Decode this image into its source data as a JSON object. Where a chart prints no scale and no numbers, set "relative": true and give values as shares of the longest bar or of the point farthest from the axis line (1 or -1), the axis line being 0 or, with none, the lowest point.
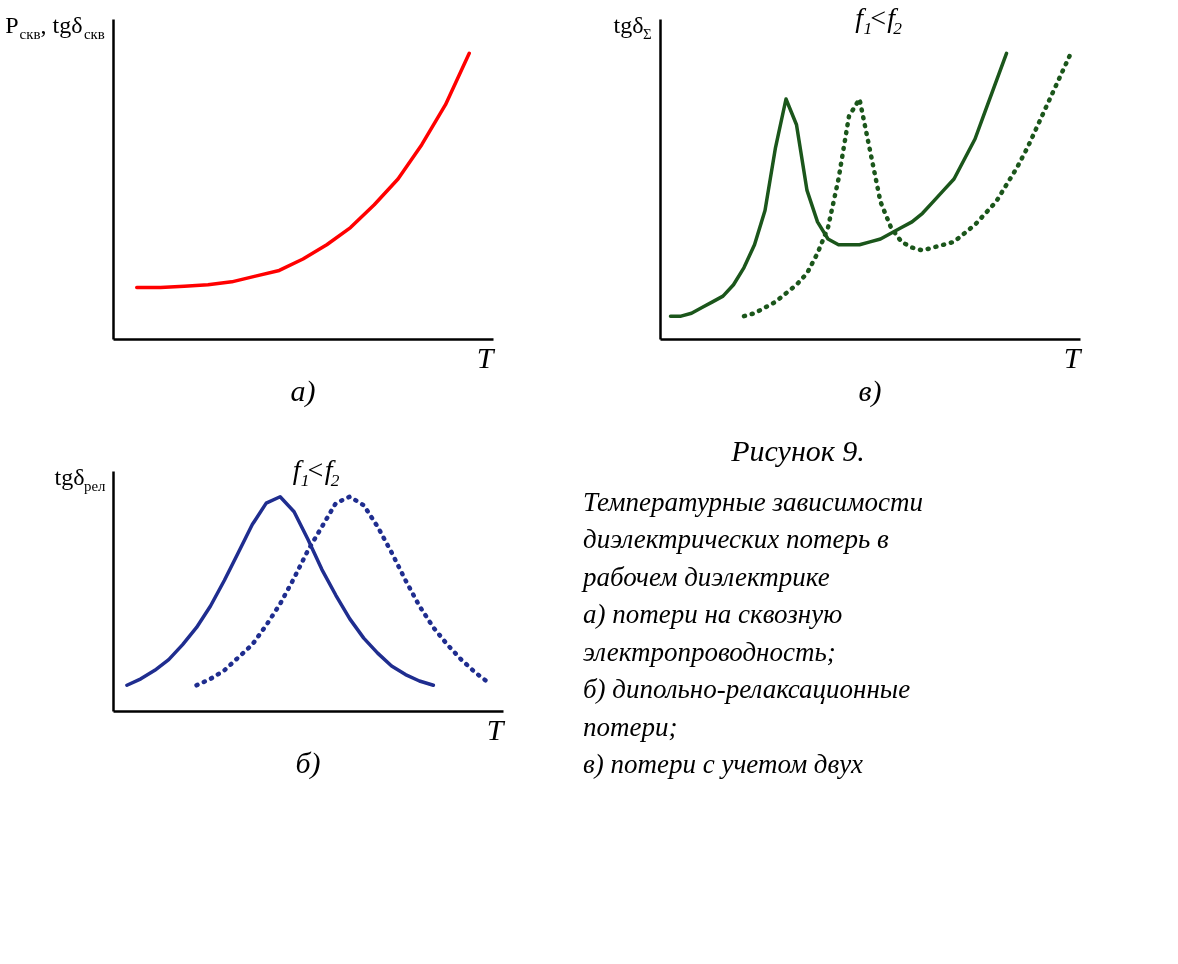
{
  "chart_data": [
    {
      "type": "line",
      "relative": true,
      "title": "а)",
      "xlabel": "T",
      "ylabel": "P$_{скв}$, tgδ$_{скв}$",
      "tick_labels": false,
      "grid": false,
      "marker": "none",
      "categories": [
        null,
        null,
        null,
        null,
        null,
        null,
        null,
        null,
        null,
        null,
        null,
        null,
        null,
        null,
        null
      ],
      "series": [
        {
          "color": "#ff0000",
          "line_style": "solid",
          "values": [
            0.18,
            0.18,
            0.185,
            0.19,
            0.2,
            0.22,
            0.24,
            0.28,
            0.33,
            0.39,
            0.47,
            0.56,
            0.68,
            0.82,
            1.0
          ]
        }
      ]
    },
    {
      "type": "line",
      "relative": true,
      "title": "в)",
      "xlabel": "T",
      "ylabel": "tgδ$_{Σ}$",
      "annotations": [
        "f$_{1}$<f$_{2}$"
      ],
      "tick_labels": false,
      "grid": false,
      "marker": "none",
      "categories": [
        null,
        null,
        null,
        null,
        null,
        null,
        null,
        null,
        null,
        null,
        null,
        null,
        null,
        null,
        null,
        null,
        null,
        null,
        null,
        null,
        null,
        null,
        null,
        null,
        null,
        null,
        null,
        null,
        null,
        null,
        null,
        null,
        null,
        null,
        null,
        null,
        null,
        null,
        null
      ],
      "series": [
        {
          "color": "#1b561b",
          "line_style": "solid",
          "values": [
            0.08,
            0.08,
            0.09,
            0.11,
            0.13,
            0.15,
            0.19,
            0.25,
            0.33,
            0.45,
            0.67,
            0.84,
            0.75,
            0.52,
            0.41,
            0.35,
            0.33,
            0.33,
            0.33,
            0.34,
            0.35,
            0.37,
            0.39,
            0.41,
            0.44,
            0.48,
            0.52,
            0.56,
            0.63,
            0.7,
            0.8,
            0.9,
            1.0,
            null,
            null,
            null,
            null,
            null,
            null
          ]
        },
        {
          "color": "#1b561b",
          "line_style": "dotted",
          "values": [
            null,
            null,
            null,
            null,
            null,
            null,
            null,
            0.08,
            0.09,
            0.11,
            0.13,
            0.16,
            0.19,
            0.23,
            0.3,
            0.39,
            0.56,
            0.78,
            0.84,
            0.66,
            0.48,
            0.39,
            0.34,
            0.32,
            0.31,
            0.32,
            0.33,
            0.34,
            0.37,
            0.4,
            0.44,
            0.48,
            0.54,
            0.6,
            0.67,
            0.75,
            0.83,
            0.91,
            0.99
          ]
        }
      ]
    },
    {
      "type": "line",
      "relative": true,
      "title": "б)",
      "xlabel": "T",
      "ylabel": "tgδ$_{рел}$",
      "annotations": [
        "f$_{1}$<f$_{2}$"
      ],
      "tick_labels": false,
      "grid": false,
      "marker": "none",
      "categories": [
        null,
        null,
        null,
        null,
        null,
        null,
        null,
        null,
        null,
        null,
        null,
        null,
        null,
        null,
        null,
        null,
        null,
        null,
        null,
        null,
        null,
        null,
        null,
        null,
        null,
        null,
        null
      ],
      "series": [
        {
          "color": "#1f2d8f",
          "line_style": "solid",
          "values": [
            0.12,
            0.15,
            0.19,
            0.24,
            0.31,
            0.39,
            0.49,
            0.61,
            0.74,
            0.87,
            0.97,
            1.0,
            0.93,
            0.8,
            0.66,
            0.54,
            0.43,
            0.34,
            0.27,
            0.21,
            0.17,
            0.14,
            0.12,
            null,
            null,
            null,
            null
          ]
        },
        {
          "color": "#1f2d8f",
          "line_style": "dotted",
          "values": [
            null,
            null,
            null,
            null,
            null,
            0.12,
            0.15,
            0.19,
            0.25,
            0.31,
            0.4,
            0.5,
            0.62,
            0.75,
            0.86,
            0.97,
            1.0,
            0.96,
            0.86,
            0.74,
            0.61,
            0.49,
            0.39,
            0.31,
            0.24,
            0.18,
            0.13
          ]
        }
      ]
    },
    {
      "type": "other",
      "title": "Рисунок 9.",
      "annotations": [
        "Температурные зависимости диэлектрических потерь в рабочем диэлектрике",
        "а) потери на сквозную электропроводность;",
        "б) дипольно-релаксационные потери;",
        "в) потери с учетом двух"
      ]
    }
  ]
}
